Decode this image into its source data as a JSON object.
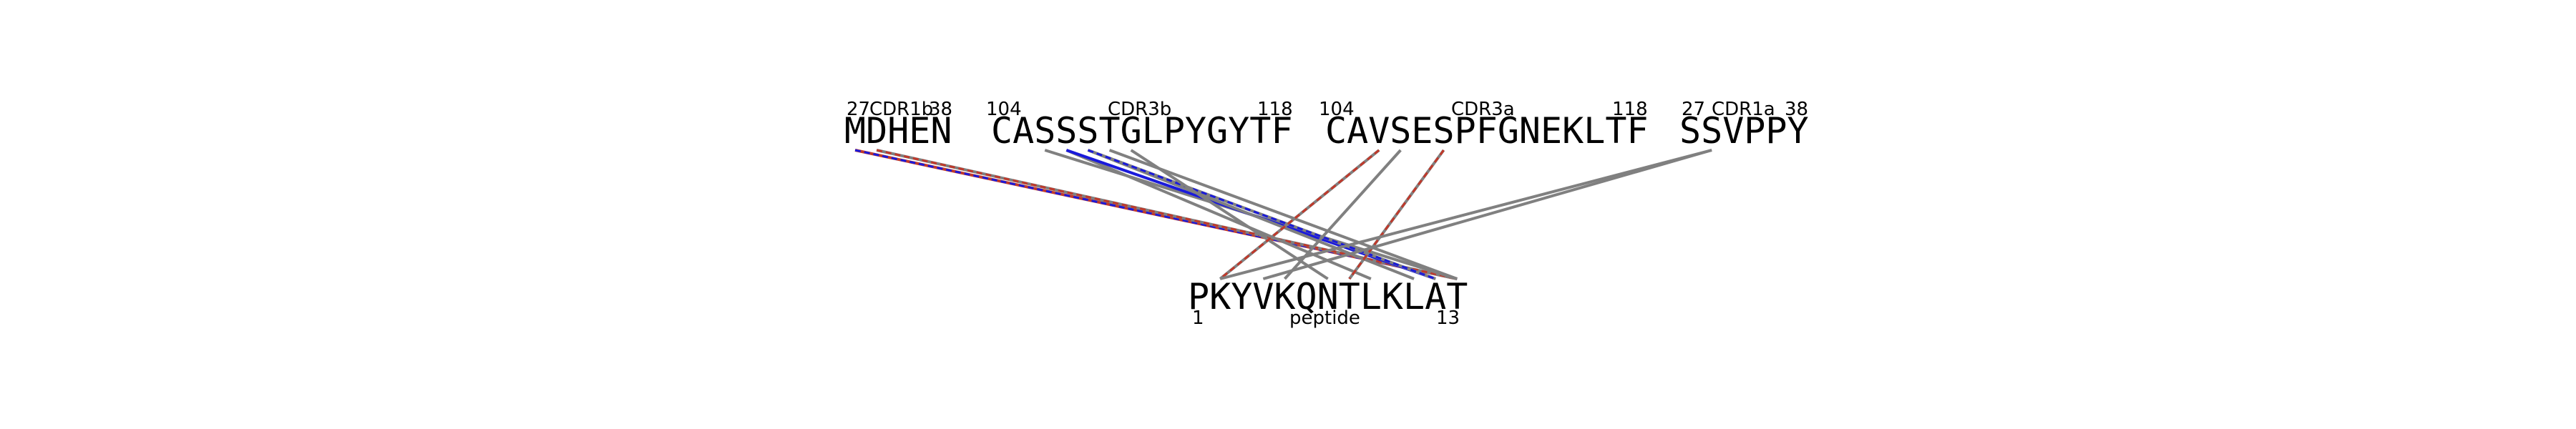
{
  "diagram": {
    "chains": [
      {
        "id": "cdr1b",
        "sequence": "MDHEN",
        "name": "CDR1b",
        "start": "27",
        "end": "38"
      },
      {
        "id": "cdr3b",
        "sequence": "CASSSTGLPYGYTF",
        "name": "CDR3b",
        "start": "104",
        "end": "118"
      },
      {
        "id": "cdr3a",
        "sequence": "CAVSESPFGNEKLTF",
        "name": "CDR3a",
        "start": "104",
        "end": "118"
      },
      {
        "id": "cdr1a",
        "sequence": "SSVPPY",
        "name": "CDR1a",
        "start": "27",
        "end": "38"
      }
    ],
    "peptide": {
      "sequence": "PKYVKQNTLKLAT",
      "name": "peptide",
      "start": "1",
      "end": "13"
    },
    "contacts": [
      {
        "chain": "cdr1b",
        "residue": 0,
        "peptide_residue": 12,
        "style": "blue-red"
      },
      {
        "chain": "cdr1b",
        "residue": 1,
        "peptide_residue": 12,
        "style": "red-gray"
      },
      {
        "chain": "cdr3b",
        "residue": 2,
        "peptide_residue": 12,
        "style": "gray"
      },
      {
        "chain": "cdr3b",
        "residue": 3,
        "peptide_residue": 8,
        "style": "gray"
      },
      {
        "chain": "cdr3b",
        "residue": 3,
        "peptide_residue": 11,
        "style": "blue"
      },
      {
        "chain": "cdr3b",
        "residue": 4,
        "peptide_residue": 10,
        "style": "gray"
      },
      {
        "chain": "cdr3b",
        "residue": 4,
        "peptide_residue": 11,
        "style": "blue-dashed"
      },
      {
        "chain": "cdr3b",
        "residue": 5,
        "peptide_residue": 12,
        "style": "gray"
      },
      {
        "chain": "cdr3b",
        "residue": 6,
        "peptide_residue": 6,
        "style": "gray"
      },
      {
        "chain": "cdr3a",
        "residue": 2,
        "peptide_residue": 1,
        "style": "red-gray"
      },
      {
        "chain": "cdr3a",
        "residue": 3,
        "peptide_residue": 4,
        "style": "gray"
      },
      {
        "chain": "cdr3a",
        "residue": 5,
        "peptide_residue": 7,
        "style": "red-gray"
      },
      {
        "chain": "cdr1a",
        "residue": 1,
        "peptide_residue": 1,
        "style": "gray"
      },
      {
        "chain": "cdr1a",
        "residue": 1,
        "peptide_residue": 3,
        "style": "gray"
      }
    ],
    "colors": {
      "gray": "#808080",
      "red": "#c0392b",
      "blue": "#1a1adb",
      "text": "#000000"
    }
  }
}
